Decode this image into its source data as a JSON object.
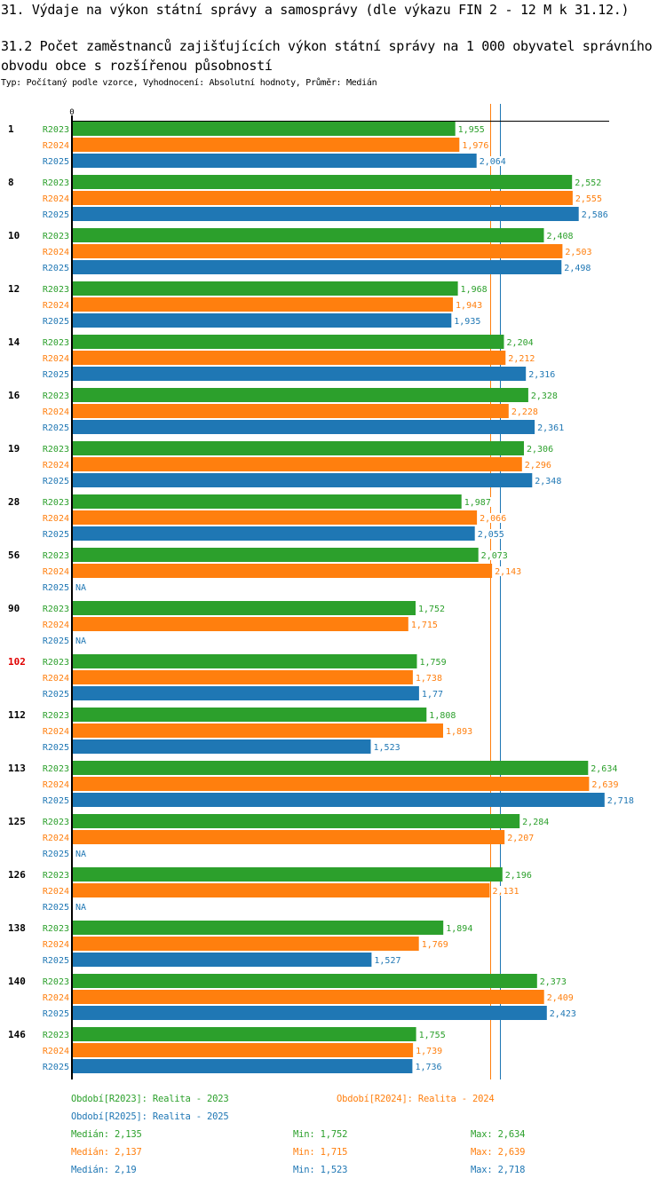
{
  "header": {
    "title": "31. Výdaje na výkon státní správy a samosprávy (dle výkazu FIN 2 - 12 M k 31.12.)",
    "subtitle": "31.2 Počet zaměstnanců zajišťujících výkon státní správy na 1 000 obyvatel správního obvodu obce s rozšířenou působností",
    "info": "Typ: Počítaný podle vzorce, Vyhodnocení: Absolutní hodnoty, Průměr: Medián"
  },
  "colors": {
    "R2023": "#2ca02c",
    "R2024": "#ff7f0e",
    "R2025": "#1f77b4",
    "highlight": "#e00000"
  },
  "chart_data": {
    "type": "bar",
    "orientation": "horizontal",
    "title": "31.2 Počet zaměstnanců zajišťujících výkon státní správy na 1 000 obyvatel správního obvodu obce s rozšířenou působností",
    "xlabel": "",
    "ylabel": "",
    "x_tick_labels": [
      "0"
    ],
    "xlim": [
      0,
      2.75
    ],
    "highlight_category": "102",
    "categories": [
      "1",
      "8",
      "10",
      "12",
      "14",
      "16",
      "19",
      "28",
      "56",
      "90",
      "102",
      "112",
      "113",
      "125",
      "126",
      "138",
      "140",
      "146"
    ],
    "series": [
      {
        "name": "R2023",
        "values": [
          1.955,
          2.552,
          2.408,
          1.968,
          2.204,
          2.328,
          2.306,
          1.987,
          2.073,
          1.752,
          1.759,
          1.808,
          2.634,
          2.284,
          2.196,
          1.894,
          2.373,
          1.755
        ],
        "labels": [
          "1,955",
          "2,552",
          "2,408",
          "1,968",
          "2,204",
          "2,328",
          "2,306",
          "1,987",
          "2,073",
          "1,752",
          "1,759",
          "1,808",
          "2,634",
          "2,284",
          "2,196",
          "1,894",
          "2,373",
          "1,755"
        ]
      },
      {
        "name": "R2024",
        "values": [
          1.976,
          2.555,
          2.503,
          1.943,
          2.212,
          2.228,
          2.296,
          2.066,
          2.143,
          1.715,
          1.738,
          1.893,
          2.639,
          2.207,
          2.131,
          1.769,
          2.409,
          1.739
        ],
        "labels": [
          "1,976",
          "2,555",
          "2,503",
          "1,943",
          "2,212",
          "2,228",
          "2,296",
          "2,066",
          "2,143",
          "1,715",
          "1,738",
          "1,893",
          "2,639",
          "2,207",
          "2,131",
          "1,769",
          "2,409",
          "1,739"
        ]
      },
      {
        "name": "R2025",
        "values": [
          2.064,
          2.586,
          2.498,
          1.935,
          2.316,
          2.361,
          2.348,
          2.055,
          null,
          null,
          1.77,
          1.523,
          2.718,
          null,
          null,
          1.527,
          2.423,
          1.736
        ],
        "labels": [
          "2,064",
          "2,586",
          "2,498",
          "1,935",
          "2,316",
          "2,361",
          "2,348",
          "2,055",
          "NA",
          "NA",
          "1,77",
          "1,523",
          "2,718",
          "NA",
          "NA",
          "1,527",
          "2,423",
          "1,736"
        ]
      }
    ],
    "median_lines": [
      {
        "series": "R2024",
        "value": 2.137
      },
      {
        "series": "R2025",
        "value": 2.19
      }
    ],
    "legend": {
      "placement": "bottom",
      "entries": [
        {
          "series": "R2023",
          "text": "Období[R2023]: Realita - 2023"
        },
        {
          "series": "R2024",
          "text": "Období[R2024]: Realita - 2024"
        },
        {
          "series": "R2025",
          "text": "Období[R2025]: Realita - 2025"
        }
      ]
    },
    "stats": [
      {
        "series": "R2023",
        "median": "Medián: 2,135",
        "min": "Min: 1,752",
        "max": "Max: 2,634"
      },
      {
        "series": "R2024",
        "median": "Medián: 2,137",
        "min": "Min: 1,715",
        "max": "Max: 2,639"
      },
      {
        "series": "R2025",
        "median": "Medián: 2,19",
        "min": "Min: 1,523",
        "max": "Max: 2,718"
      }
    ]
  }
}
